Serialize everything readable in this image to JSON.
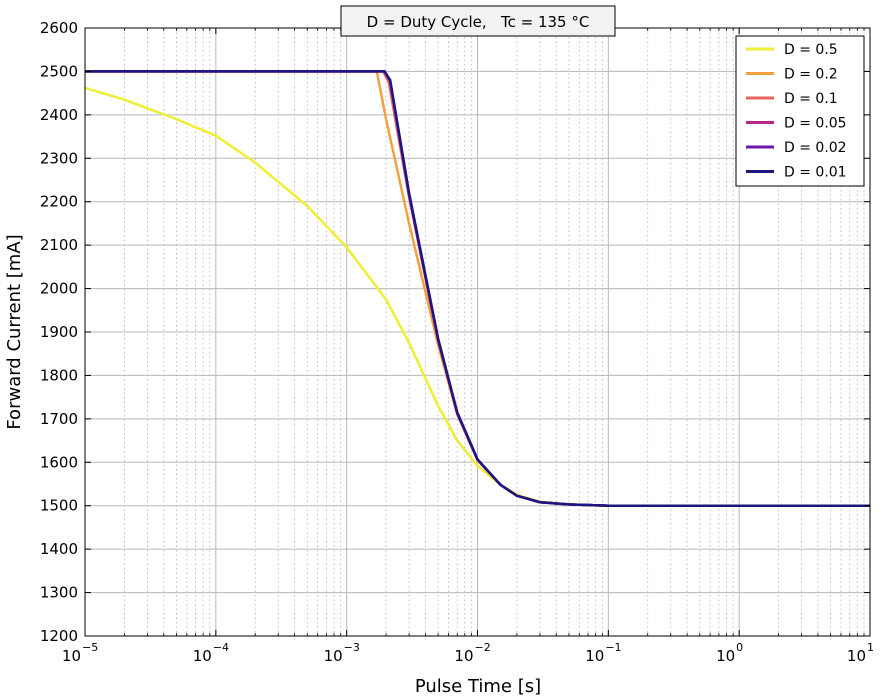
{
  "chart_data": {
    "type": "line",
    "title": "D = Duty Cycle,   Tc = 135 °C",
    "xlabel": "Pulse Time [s]",
    "ylabel": "Forward Current [mA]",
    "xscale": "log",
    "xlim": [
      1e-05,
      10
    ],
    "ylim": [
      1200,
      2600
    ],
    "grid": true,
    "legend_position": "top-right",
    "x_tick_labels": [
      {
        "base": "10",
        "exp": "−5"
      },
      {
        "base": "10",
        "exp": "−4"
      },
      {
        "base": "10",
        "exp": "−3"
      },
      {
        "base": "10",
        "exp": "−2"
      },
      {
        "base": "10",
        "exp": "−1"
      },
      {
        "base": "10",
        "exp": "0"
      },
      {
        "base": "10",
        "exp": "1"
      }
    ],
    "y_ticks": [
      1200,
      1300,
      1400,
      1500,
      1600,
      1700,
      1800,
      1900,
      2000,
      2100,
      2200,
      2300,
      2400,
      2500,
      2600
    ],
    "series": [
      {
        "name": "D = 0.5",
        "color": "#eeee33",
        "x": [
          1e-05,
          2e-05,
          5e-05,
          0.0001,
          0.0002,
          0.0005,
          0.001,
          0.002,
          0.003,
          0.005,
          0.007,
          0.01,
          0.015,
          0.02,
          0.03,
          0.05,
          0.1,
          1,
          10
        ],
        "y": [
          2462,
          2435,
          2390,
          2352,
          2290,
          2190,
          2095,
          1975,
          1875,
          1730,
          1650,
          1592,
          1548,
          1525,
          1509,
          1503,
          1500,
          1500,
          1500
        ]
      },
      {
        "name": "D = 0.2",
        "color": "#f5a040",
        "x": [
          1e-05,
          0.0017,
          0.002,
          0.003,
          0.005,
          0.007,
          0.01,
          0.015,
          0.02,
          0.03,
          0.05,
          0.1,
          1,
          10
        ],
        "y": [
          2500,
          2500,
          2390,
          2150,
          1870,
          1710,
          1605,
          1548,
          1523,
          1508,
          1503,
          1500,
          1500,
          1500
        ]
      },
      {
        "name": "D = 0.1",
        "color": "#e5625a",
        "x": [
          1e-05,
          0.0019,
          0.0021,
          0.003,
          0.005,
          0.007,
          0.01,
          0.015,
          0.02,
          0.03,
          0.05,
          0.1,
          1,
          10
        ],
        "y": [
          2500,
          2500,
          2475,
          2210,
          1880,
          1712,
          1605,
          1548,
          1523,
          1508,
          1503,
          1500,
          1500,
          1500
        ]
      },
      {
        "name": "D = 0.05",
        "color": "#b5268c",
        "x": [
          1e-05,
          0.00195,
          0.00215,
          0.003,
          0.005,
          0.007,
          0.01,
          0.015,
          0.02,
          0.03,
          0.05,
          0.1,
          1,
          10
        ],
        "y": [
          2500,
          2500,
          2478,
          2215,
          1882,
          1713,
          1606,
          1548,
          1523,
          1508,
          1503,
          1500,
          1500,
          1500
        ]
      },
      {
        "name": "D = 0.02",
        "color": "#6a16a8",
        "x": [
          1e-05,
          0.00195,
          0.00215,
          0.003,
          0.005,
          0.007,
          0.01,
          0.015,
          0.02,
          0.03,
          0.05,
          0.1,
          1,
          10
        ],
        "y": [
          2500,
          2500,
          2478,
          2218,
          1883,
          1714,
          1606,
          1548,
          1523,
          1508,
          1503,
          1500,
          1500,
          1500
        ]
      },
      {
        "name": "D = 0.01",
        "color": "#1c1780",
        "x": [
          1e-05,
          0.00195,
          0.00215,
          0.003,
          0.005,
          0.007,
          0.01,
          0.015,
          0.02,
          0.03,
          0.05,
          0.1,
          1,
          10
        ],
        "y": [
          2500,
          2500,
          2480,
          2220,
          1885,
          1715,
          1607,
          1548,
          1523,
          1508,
          1503,
          1500,
          1500,
          1500
        ]
      }
    ]
  }
}
